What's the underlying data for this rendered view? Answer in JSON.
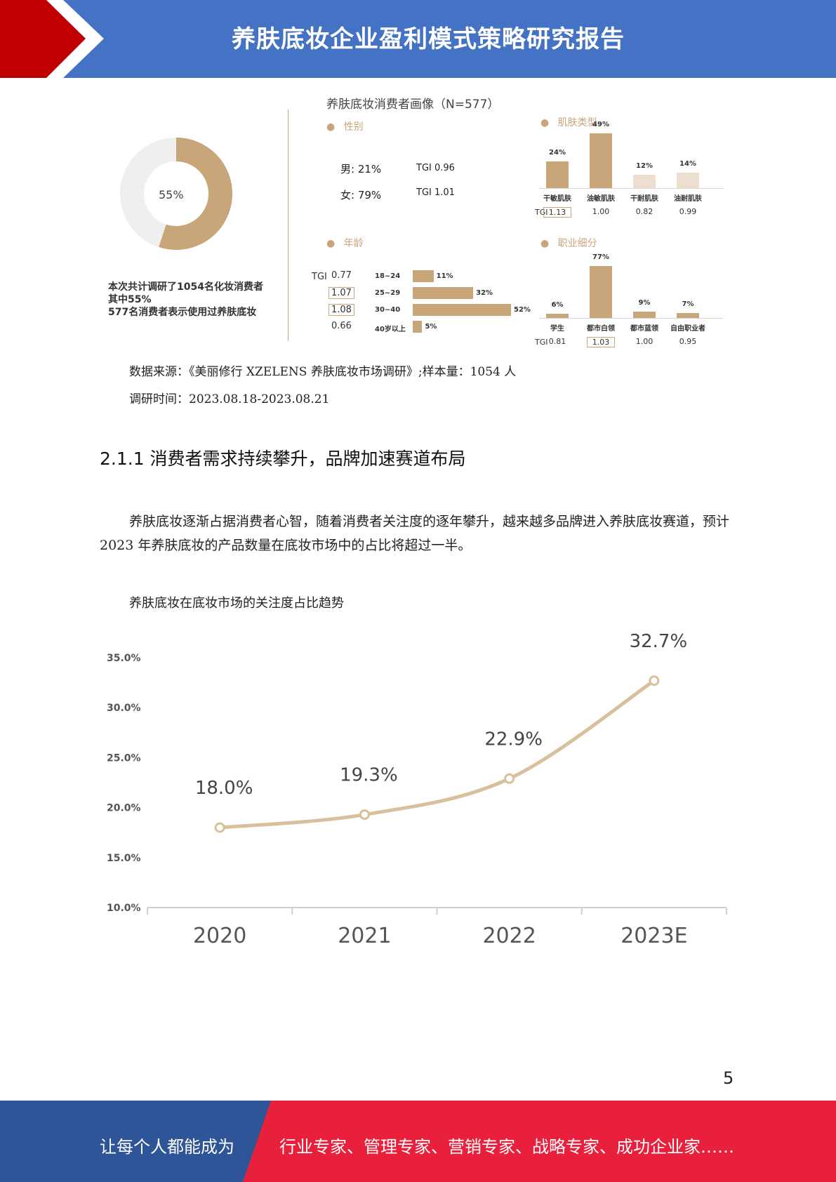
{
  "header": {
    "title": "养肤底妆企业盈利模式策略研究报告"
  },
  "infographic": {
    "title": "养肤底妆消费者画像（N=577）",
    "donut": {
      "percent": 55,
      "label": "55%"
    },
    "donut_caption": [
      "本次共计调研了1054名化妆消费者",
      "其中55%",
      "577名消费者表示使用过养肤底妆"
    ],
    "gender": {
      "heading": "性别",
      "rows": [
        {
          "label": "男: 21%",
          "tgi": "TGI  0.96"
        },
        {
          "label": "女: 79%",
          "tgi": "TGI  1.01"
        }
      ]
    },
    "age": {
      "heading": "年龄",
      "tgi_label": "TGI",
      "rows": [
        {
          "tgi": "0.77",
          "label": "18~24",
          "value": 11,
          "value_label": "11%",
          "boxed": false
        },
        {
          "tgi": "1.07",
          "label": "25~29",
          "value": 32,
          "value_label": "32%",
          "boxed": true
        },
        {
          "tgi": "1.08",
          "label": "30~40",
          "value": 52,
          "value_label": "52%",
          "boxed": true
        },
        {
          "tgi": "0.66",
          "label": "40岁以上",
          "value": 5,
          "value_label": "5%",
          "boxed": false
        }
      ]
    },
    "skin": {
      "heading": "肌肤类型",
      "tgi_label": "TGI",
      "bars": [
        {
          "label": "干敏肌肤",
          "value": 24,
          "value_label": "24%",
          "tgi": "1.13",
          "boxed": true,
          "color": "#c9a57a"
        },
        {
          "label": "油敏肌肤",
          "value": 49,
          "value_label": "49%",
          "tgi": "1.00",
          "boxed": false,
          "color": "#c9a57a"
        },
        {
          "label": "干耐肌肤",
          "value": 12,
          "value_label": "12%",
          "tgi": "0.82",
          "boxed": false,
          "color": "#eddfcf"
        },
        {
          "label": "油耐肌肤",
          "value": 14,
          "value_label": "14%",
          "tgi": "0.99",
          "boxed": false,
          "color": "#eddfcf"
        }
      ]
    },
    "occupation": {
      "heading": "职业细分",
      "tgi_label": "TGI",
      "bars": [
        {
          "label": "学生",
          "value": 6,
          "value_label": "6%",
          "tgi": "0.81",
          "boxed": false
        },
        {
          "label": "都市白领",
          "value": 77,
          "value_label": "77%",
          "tgi": "1.03",
          "boxed": true
        },
        {
          "label": "都市蓝领",
          "value": 9,
          "value_label": "9%",
          "tgi": "1.00",
          "boxed": false
        },
        {
          "label": "自由职业者",
          "value": 7,
          "value_label": "7%",
          "tgi": "0.95",
          "boxed": false
        }
      ]
    }
  },
  "source": {
    "line1": "数据来源：《美丽修行 XZELENS 养肤底妆市场调研》;样本量：1054 人",
    "line2": "调研时间：2023.08.18-2023.08.21"
  },
  "section_heading": "2.1.1 消费者需求持续攀升，品牌加速赛道布局",
  "paragraph": "养肤底妆逐渐占据消费者心智，随着消费者关注度的逐年攀升，越来越多品牌进入养肤底妆赛道，预计 2023 年养肤底妆的产品数量在底妆市场中的占比将超过一半。",
  "chart_caption": "养肤底妆在底妆市场的关注度占比趋势",
  "chart_data": {
    "type": "line",
    "categories": [
      "2020",
      "2021",
      "2022",
      "2023E"
    ],
    "values": [
      18.0,
      19.3,
      22.9,
      32.7
    ],
    "value_labels": [
      "18.0%",
      "19.3%",
      "22.9%",
      "32.7%"
    ],
    "y_ticks": [
      "10.0%",
      "15.0%",
      "20.0%",
      "25.0%",
      "30.0%",
      "35.0%"
    ],
    "ylim": [
      10,
      35
    ],
    "grid": false,
    "line_color": "#d9c09c"
  },
  "footer": {
    "left": "让每个人都能成为",
    "right": "行业专家、管理专家、营销专家、战略专家、成功企业家……"
  },
  "page_number": "5"
}
